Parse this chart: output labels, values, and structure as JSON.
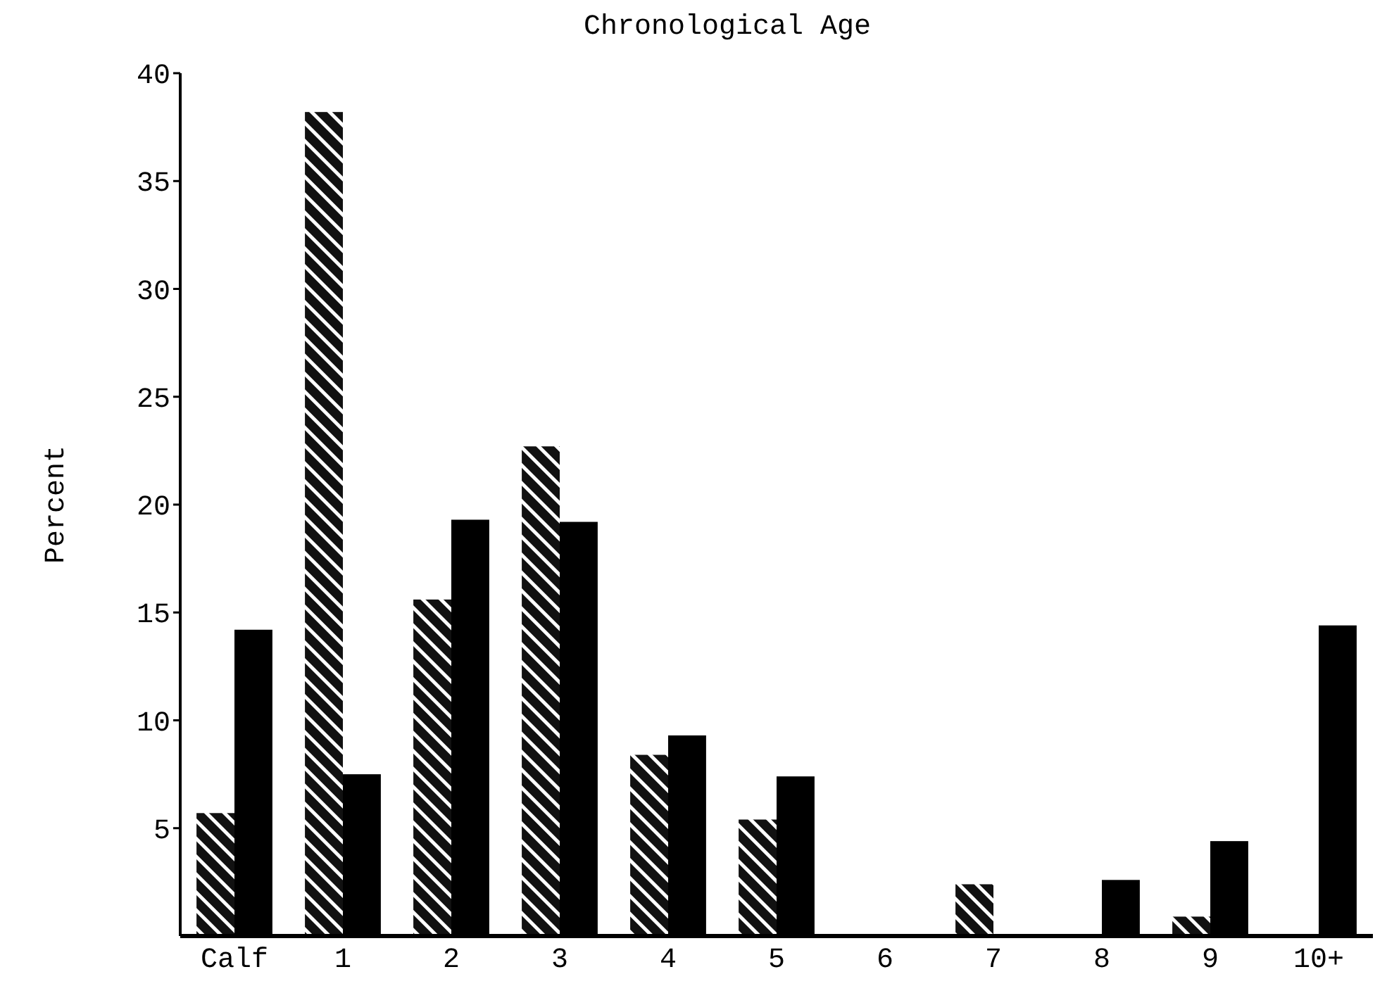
{
  "chart_data": {
    "type": "bar",
    "title": "Chronological Age",
    "ylabel": "Percent",
    "categories": [
      "Calf",
      "1",
      "2",
      "3",
      "4",
      "5",
      "6",
      "7",
      "8",
      "9",
      "10+"
    ],
    "series": [
      {
        "color": "#111111",
        "values": [
          5.7,
          38.2,
          15.6,
          22.7,
          8.4,
          5.4,
          0,
          2.4,
          0,
          0.9,
          0
        ]
      },
      {
        "color": "#000000",
        "values": [
          14.2,
          7.5,
          19.3,
          19.2,
          9.3,
          7.4,
          0,
          0,
          2.6,
          4.4,
          14.4
        ]
      }
    ],
    "ylim": [
      0,
      40
    ],
    "yticks": [
      5,
      10,
      15,
      20,
      25,
      30,
      35,
      40
    ]
  }
}
